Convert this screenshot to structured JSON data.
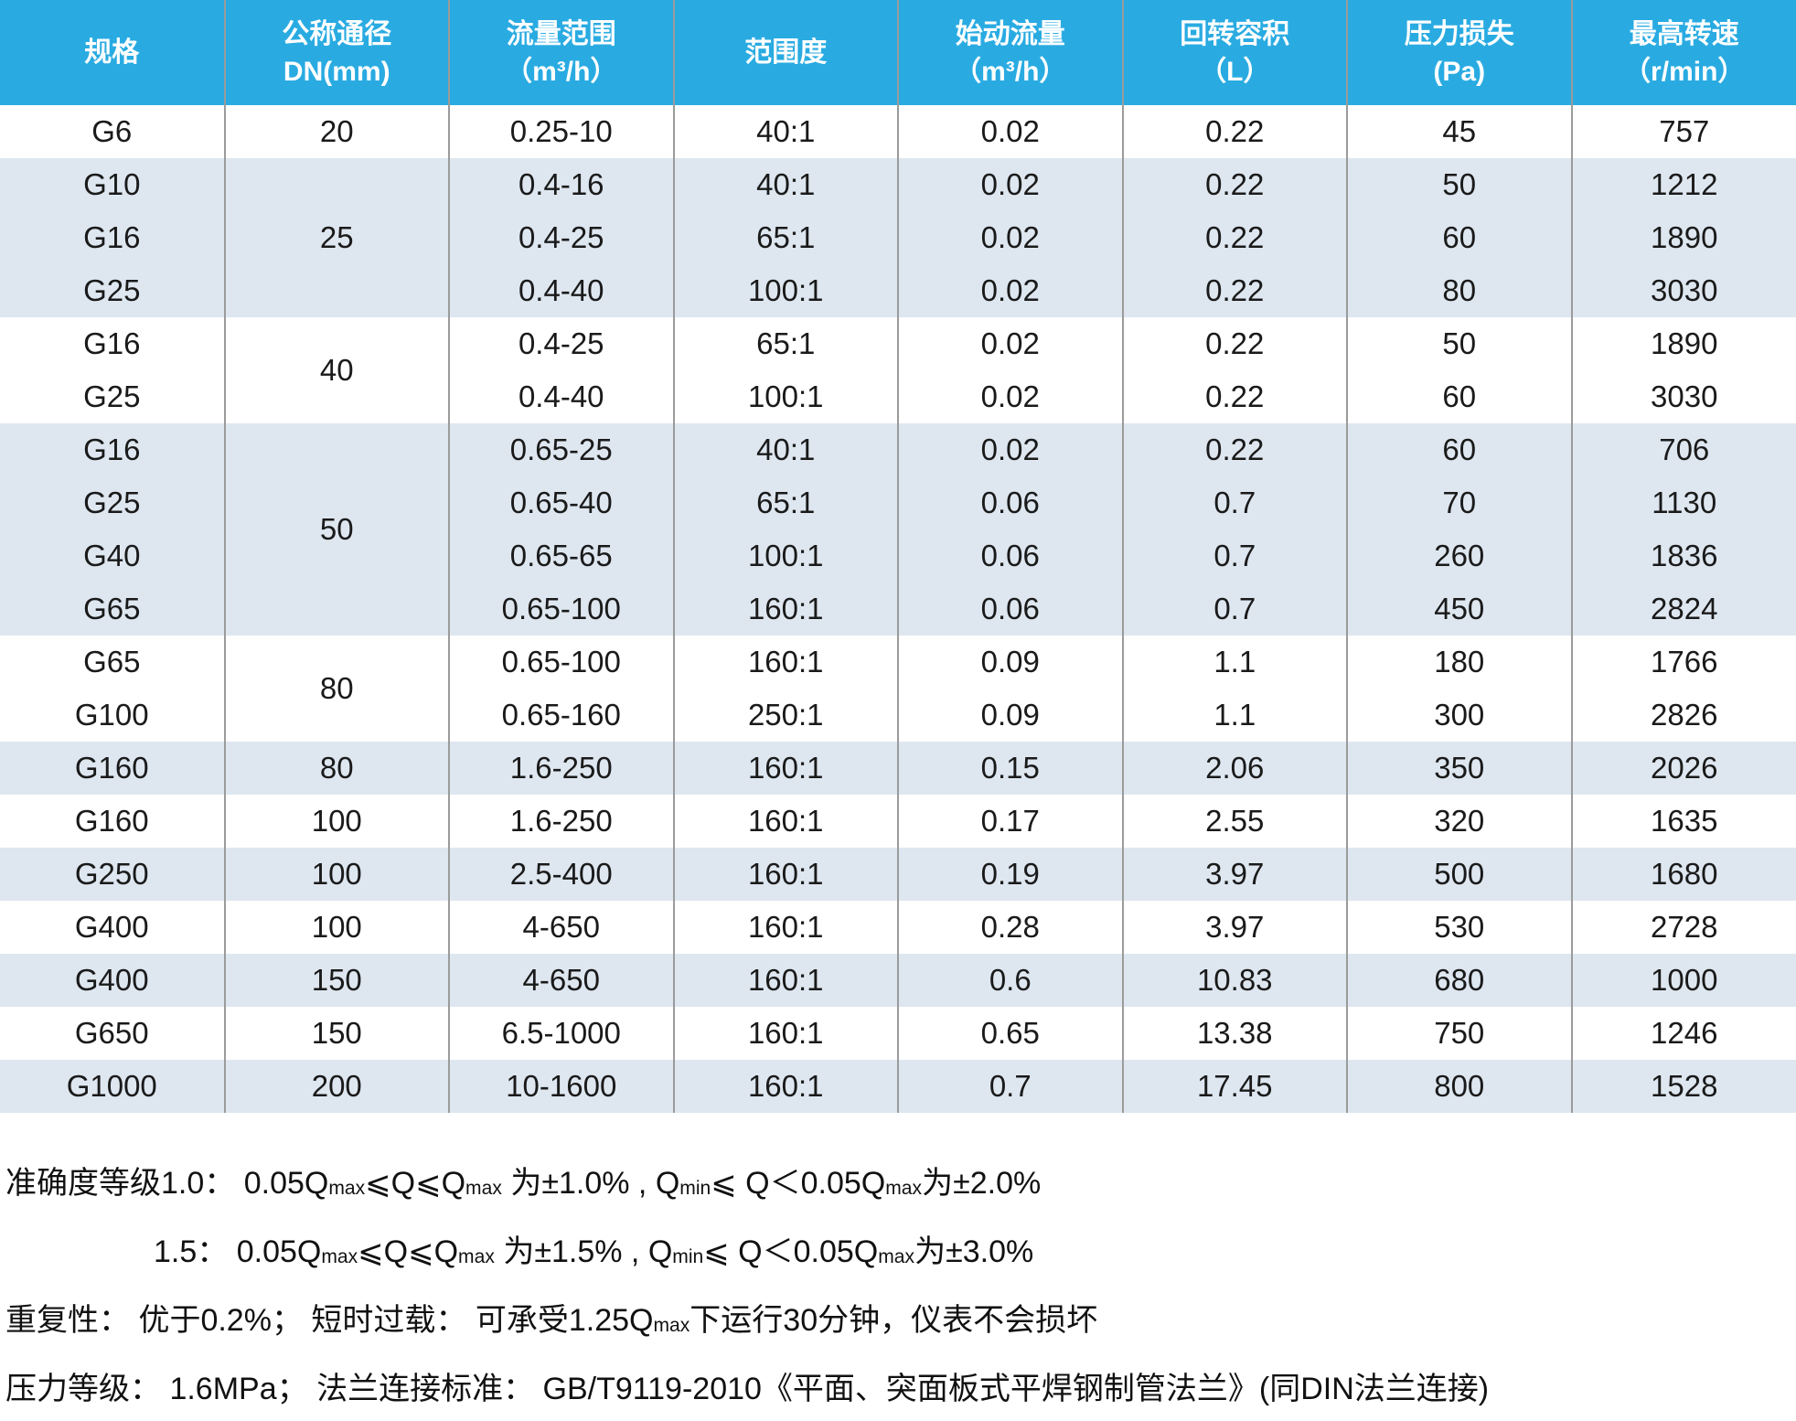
{
  "colors": {
    "header_bg": "#29ABE2",
    "row_shade": "#DEE7F0",
    "divider": "#9B9B9B",
    "body_text": "#1A1A1A",
    "header_text": "#FFFFFF"
  },
  "table": {
    "headers": [
      {
        "line1": "规格",
        "line2": ""
      },
      {
        "line1": "公称通径",
        "line2": "DN(mm)"
      },
      {
        "line1": "流量范围",
        "line2": "（m³/h）"
      },
      {
        "line1": "范围度",
        "line2": ""
      },
      {
        "line1": "始动流量",
        "line2": "（m³/h）"
      },
      {
        "line1": "回转容积",
        "line2": "（L）"
      },
      {
        "line1": "压力损失",
        "line2": "(Pa)"
      },
      {
        "line1": "最高转速",
        "line2": "（r/min）"
      }
    ],
    "groups": [
      {
        "dn": "20",
        "shade": false,
        "rows": [
          {
            "spec": "G6",
            "flow_range": "0.25-10",
            "rangeability": "40:1",
            "start_flow": "0.02",
            "rotary_volume": "0.22",
            "pressure_loss": "45",
            "max_speed": "757"
          }
        ]
      },
      {
        "dn": "25",
        "shade": true,
        "rows": [
          {
            "spec": "G10",
            "flow_range": "0.4-16",
            "rangeability": "40:1",
            "start_flow": "0.02",
            "rotary_volume": "0.22",
            "pressure_loss": "50",
            "max_speed": "1212"
          },
          {
            "spec": "G16",
            "flow_range": "0.4-25",
            "rangeability": "65:1",
            "start_flow": "0.02",
            "rotary_volume": "0.22",
            "pressure_loss": "60",
            "max_speed": "1890"
          },
          {
            "spec": "G25",
            "flow_range": "0.4-40",
            "rangeability": "100:1",
            "start_flow": "0.02",
            "rotary_volume": "0.22",
            "pressure_loss": "80",
            "max_speed": "3030"
          }
        ]
      },
      {
        "dn": "40",
        "shade": false,
        "rows": [
          {
            "spec": "G16",
            "flow_range": "0.4-25",
            "rangeability": "65:1",
            "start_flow": "0.02",
            "rotary_volume": "0.22",
            "pressure_loss": "50",
            "max_speed": "1890"
          },
          {
            "spec": "G25",
            "flow_range": "0.4-40",
            "rangeability": "100:1",
            "start_flow": "0.02",
            "rotary_volume": "0.22",
            "pressure_loss": "60",
            "max_speed": "3030"
          }
        ]
      },
      {
        "dn": "50",
        "shade": true,
        "rows": [
          {
            "spec": "G16",
            "flow_range": "0.65-25",
            "rangeability": "40:1",
            "start_flow": "0.02",
            "rotary_volume": "0.22",
            "pressure_loss": "60",
            "max_speed": "706"
          },
          {
            "spec": "G25",
            "flow_range": "0.65-40",
            "rangeability": "65:1",
            "start_flow": "0.06",
            "rotary_volume": "0.7",
            "pressure_loss": "70",
            "max_speed": "1130"
          },
          {
            "spec": "G40",
            "flow_range": "0.65-65",
            "rangeability": "100:1",
            "start_flow": "0.06",
            "rotary_volume": "0.7",
            "pressure_loss": "260",
            "max_speed": "1836"
          },
          {
            "spec": "G65",
            "flow_range": "0.65-100",
            "rangeability": "160:1",
            "start_flow": "0.06",
            "rotary_volume": "0.7",
            "pressure_loss": "450",
            "max_speed": "2824"
          }
        ]
      },
      {
        "dn": "80",
        "shade": false,
        "rows": [
          {
            "spec": "G65",
            "flow_range": "0.65-100",
            "rangeability": "160:1",
            "start_flow": "0.09",
            "rotary_volume": "1.1",
            "pressure_loss": "180",
            "max_speed": "1766"
          },
          {
            "spec": "G100",
            "flow_range": "0.65-160",
            "rangeability": "250:1",
            "start_flow": "0.09",
            "rotary_volume": "1.1",
            "pressure_loss": "300",
            "max_speed": "2826"
          }
        ]
      },
      {
        "dn": "80",
        "shade": true,
        "rows": [
          {
            "spec": "G160",
            "flow_range": "1.6-250",
            "rangeability": "160:1",
            "start_flow": "0.15",
            "rotary_volume": "2.06",
            "pressure_loss": "350",
            "max_speed": "2026"
          }
        ]
      },
      {
        "dn": "100",
        "shade": false,
        "rows": [
          {
            "spec": "G160",
            "flow_range": "1.6-250",
            "rangeability": "160:1",
            "start_flow": "0.17",
            "rotary_volume": "2.55",
            "pressure_loss": "320",
            "max_speed": "1635"
          }
        ]
      },
      {
        "dn": "100",
        "shade": true,
        "rows": [
          {
            "spec": "G250",
            "flow_range": "2.5-400",
            "rangeability": "160:1",
            "start_flow": "0.19",
            "rotary_volume": "3.97",
            "pressure_loss": "500",
            "max_speed": "1680"
          }
        ]
      },
      {
        "dn": "100",
        "shade": false,
        "rows": [
          {
            "spec": "G400",
            "flow_range": "4-650",
            "rangeability": "160:1",
            "start_flow": "0.28",
            "rotary_volume": "3.97",
            "pressure_loss": "530",
            "max_speed": "2728"
          }
        ]
      },
      {
        "dn": "150",
        "shade": true,
        "rows": [
          {
            "spec": "G400",
            "flow_range": "4-650",
            "rangeability": "160:1",
            "start_flow": "0.6",
            "rotary_volume": "10.83",
            "pressure_loss": "680",
            "max_speed": "1000"
          }
        ]
      },
      {
        "dn": "150",
        "shade": false,
        "rows": [
          {
            "spec": "G650",
            "flow_range": "6.5-1000",
            "rangeability": "160:1",
            "start_flow": "0.65",
            "rotary_volume": "13.38",
            "pressure_loss": "750",
            "max_speed": "1246"
          }
        ]
      },
      {
        "dn": "200",
        "shade": true,
        "rows": [
          {
            "spec": "G1000",
            "flow_range": "10-1600",
            "rangeability": "160:1",
            "start_flow": "0.7",
            "rotary_volume": "17.45",
            "pressure_loss": "800",
            "max_speed": "1528"
          }
        ]
      }
    ]
  },
  "notes": {
    "lines": [
      {
        "indent": false,
        "segments": [
          {
            "text": "准确度等级1.0： 0.05Q"
          },
          {
            "text": "max",
            "sub": true
          },
          {
            "text": "⩽Q⩽Q"
          },
          {
            "text": "max",
            "sub": true
          },
          {
            "text": " 为±1.0% , Q"
          },
          {
            "text": "min",
            "sub": true
          },
          {
            "text": "⩽ Q＜0.05Q"
          },
          {
            "text": "max",
            "sub": true
          },
          {
            "text": "为±2.0%"
          }
        ]
      },
      {
        "indent": true,
        "segments": [
          {
            "text": "1.5： 0.05Q"
          },
          {
            "text": "max",
            "sub": true
          },
          {
            "text": "⩽Q⩽Q"
          },
          {
            "text": "max",
            "sub": true
          },
          {
            "text": " 为±1.5% , Q"
          },
          {
            "text": "min",
            "sub": true
          },
          {
            "text": "⩽ Q＜0.05Q"
          },
          {
            "text": "max",
            "sub": true
          },
          {
            "text": "为±3.0%"
          }
        ]
      },
      {
        "indent": false,
        "segments": [
          {
            "text": "重复性： 优于0.2%； 短时过载： 可承受1.25Q"
          },
          {
            "text": "max",
            "sub": true
          },
          {
            "text": "下运行30分钟，仪表不会损坏"
          }
        ]
      },
      {
        "indent": false,
        "segments": [
          {
            "text": "压力等级： 1.6MPa； 法兰连接标准： GB/T9119-2010《平面、突面板式平焊钢制管法兰》(同DIN法兰连接)"
          }
        ]
      }
    ]
  }
}
